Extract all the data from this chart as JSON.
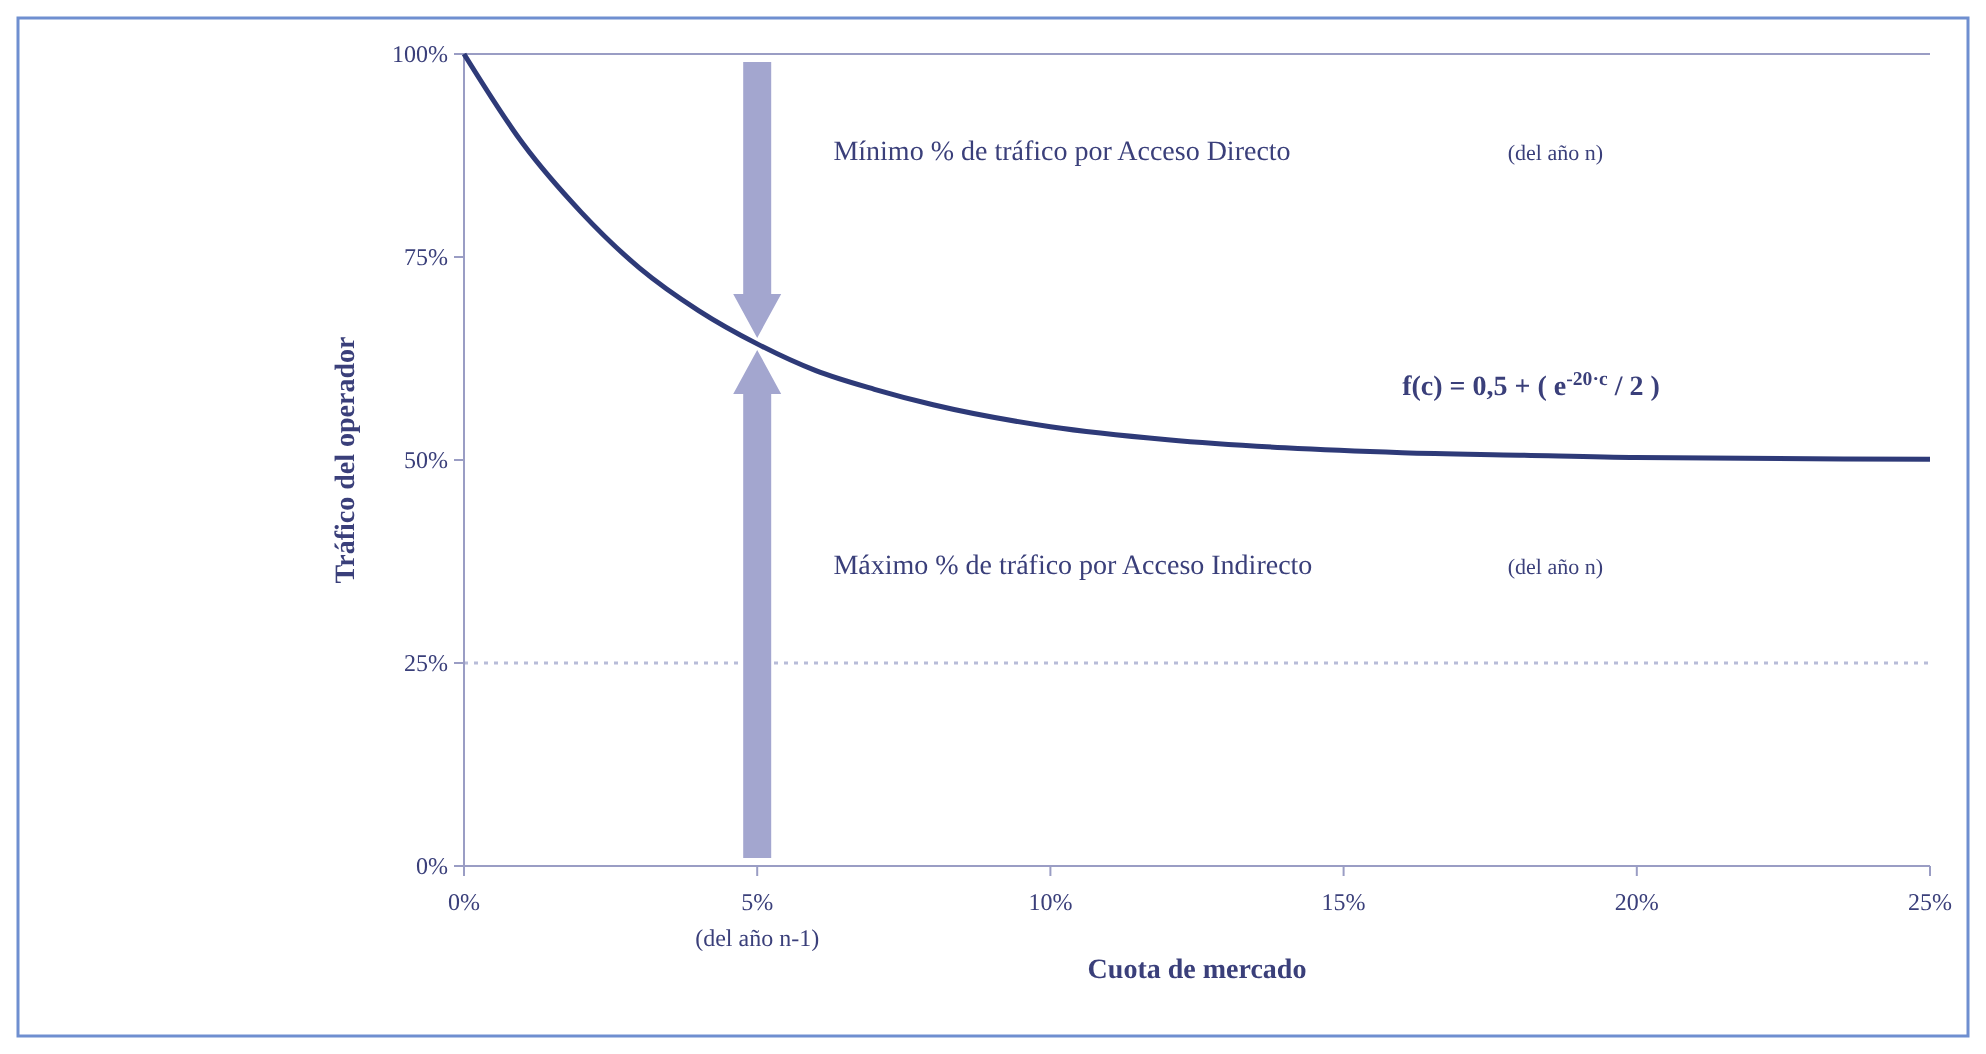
{
  "chart_data": {
    "type": "line",
    "xlabel": "Cuota de mercado",
    "ylabel": "Tráfico del operador",
    "x": [
      0,
      1,
      2,
      3,
      4,
      5,
      6,
      7,
      8,
      10,
      12,
      14,
      16,
      18,
      20,
      25
    ],
    "series": [
      {
        "color": "#2e3a78",
        "values": [
          100,
          89,
          80.5,
          73.6,
          68.4,
          64.3,
          61,
          58.7,
          56.8,
          54.1,
          52.5,
          51.5,
          50.9,
          50.6,
          50.3,
          50.1
        ]
      }
    ],
    "xlim": [
      0,
      25
    ],
    "ylim": [
      0,
      100
    ],
    "xticks": [
      {
        "value": 0,
        "label": "0%"
      },
      {
        "value": 5,
        "label": "5%"
      },
      {
        "value": 10,
        "label": "10%"
      },
      {
        "value": 15,
        "label": "15%"
      },
      {
        "value": 20,
        "label": "20%"
      },
      {
        "value": 25,
        "label": "25%"
      }
    ],
    "yticks": [
      {
        "value": 0,
        "label": "0%"
      },
      {
        "value": 25,
        "label": "25%"
      },
      {
        "value": 50,
        "label": "50%"
      },
      {
        "value": 75,
        "label": "75%"
      },
      {
        "value": 100,
        "label": "100%"
      }
    ],
    "ref_lines": [
      {
        "axis": "y",
        "value": 25,
        "color": "#b8bcd8",
        "line_style": "dotted"
      }
    ],
    "annotations": [
      "Mínimo % de tráfico por Acceso Directo",
      "(del año n)",
      "f(c) = 0,5 + ( e$^{-20·c}$ / 2 )",
      "Máximo % de tráfico por Acceso Indirecto",
      "(del año n)",
      "(del año n-1)"
    ],
    "grid": false,
    "marker": "none",
    "line_style": "solid"
  }
}
